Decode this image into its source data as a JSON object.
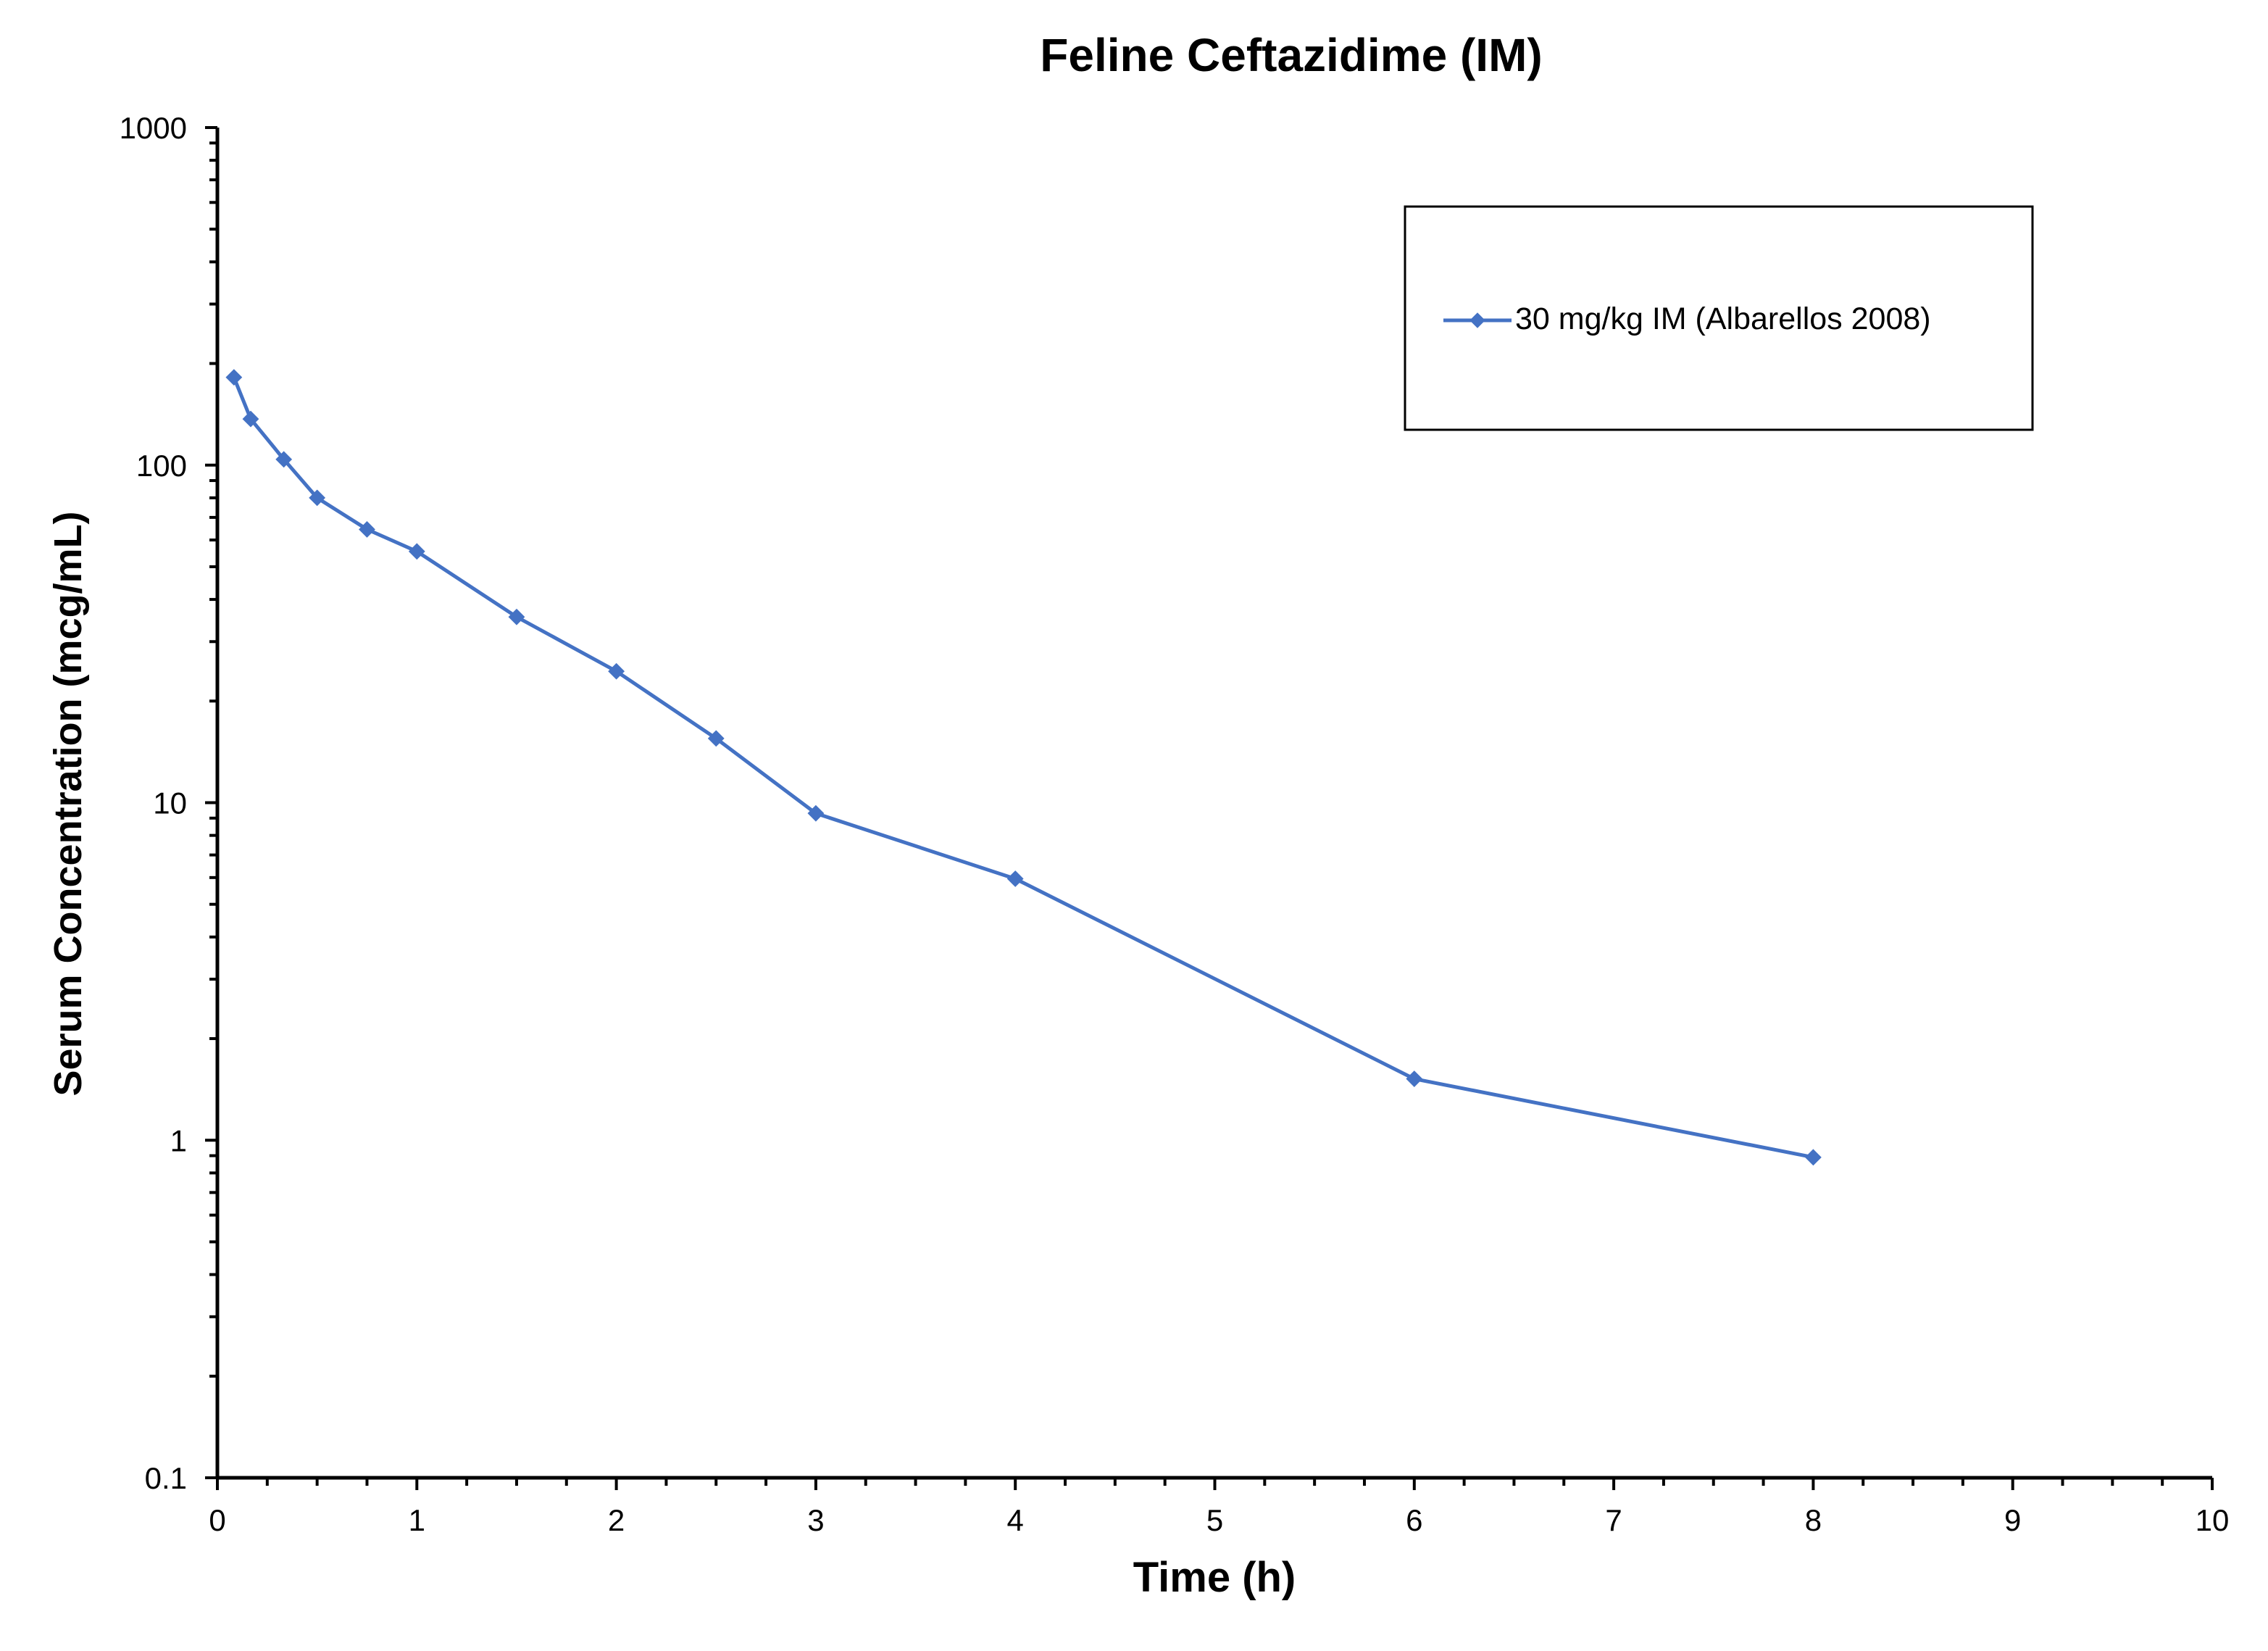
{
  "chart_data": {
    "type": "line",
    "title": "Feline Ceftazidime (IM)",
    "xlabel": "Time (h)",
    "ylabel": "Serum Concentration (mcg/mL)",
    "xlim": [
      0,
      10
    ],
    "ylim": [
      0.1,
      1000
    ],
    "yscale": "log",
    "x_ticks": [
      "0",
      "1",
      "2",
      "3",
      "4",
      "5",
      "6",
      "7",
      "8",
      "9",
      "10"
    ],
    "y_ticks": [
      "0.1",
      "1",
      "10",
      "100",
      "1000"
    ],
    "grid": false,
    "legend_position": "top-right",
    "series": [
      {
        "name": "30 mg/kg IM (Albarellos 2008)",
        "color": "#4472C4",
        "marker": "diamond",
        "x": [
          0.083,
          0.167,
          0.333,
          0.5,
          0.75,
          1,
          1.5,
          2,
          2.5,
          3,
          4,
          6,
          8
        ],
        "y": [
          182,
          137,
          104,
          80,
          64.5,
          55.5,
          35.5,
          24.5,
          15.5,
          9.3,
          5.95,
          1.52,
          0.89
        ]
      }
    ]
  }
}
